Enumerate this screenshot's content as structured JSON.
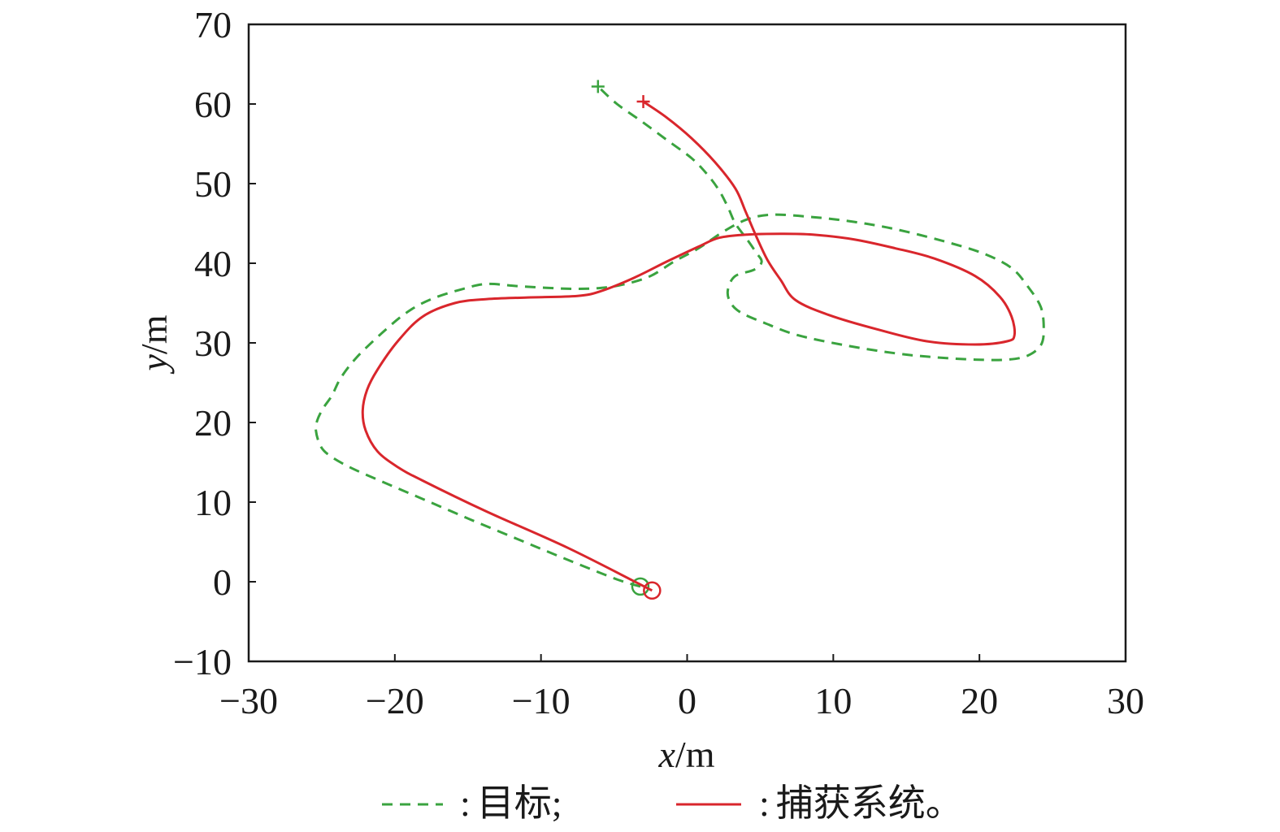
{
  "chart_data": {
    "type": "line",
    "xlabel": "x/m",
    "ylabel": "y/m",
    "xlim": [
      -30,
      30
    ],
    "ylim": [
      -10,
      70
    ],
    "xticks": [
      -30,
      -20,
      -10,
      0,
      10,
      20,
      30
    ],
    "xtick_labels": [
      "−30",
      "−20",
      "−10",
      "0",
      "10",
      "20",
      "30"
    ],
    "yticks": [
      -10,
      0,
      10,
      20,
      30,
      40,
      50,
      60,
      70
    ],
    "ytick_labels": [
      "−10",
      "0",
      "10",
      "20",
      "30",
      "40",
      "50",
      "60",
      "70"
    ],
    "grid": false,
    "legend_position": "bottom",
    "axis_color": "#1a1a1a",
    "series": [
      {
        "name": "目标",
        "legend_prefix": ":",
        "legend_suffix": ";",
        "color": "#3aa33f",
        "line_style": "dashed",
        "start_marker": "circle",
        "end_marker": "plus",
        "x": [
          -3.2,
          -4.8,
          -8.1,
          -11.4,
          -14.8,
          -18.1,
          -20.9,
          -23.1,
          -24.5,
          -25.1,
          -25.4,
          -25.3,
          -24.9,
          -24.3,
          -23.7,
          -22.6,
          -20.9,
          -19.2,
          -17.5,
          -15.3,
          -13.7,
          -11.4,
          -8.1,
          -5.9,
          -4.2,
          -2.5,
          -0.9,
          0.8,
          2.5,
          4.1,
          5.8,
          8.6,
          11.4,
          14.2,
          17.5,
          20.3,
          22.2,
          23.3,
          24.2,
          24.4,
          24.2,
          23.3,
          21.9,
          19.7,
          16.9,
          14.2,
          10.8,
          7.5,
          5.3,
          3.6,
          2.9,
          2.8,
          3.3,
          4.6,
          5.1,
          4.7,
          4.1,
          3.3,
          2.8,
          2.2,
          1.4,
          0.3,
          -1.4,
          -3.1,
          -4.8,
          -6.1
        ],
        "y": [
          -0.6,
          0.3,
          2.7,
          5.2,
          7.8,
          10.4,
          12.6,
          14.4,
          15.9,
          17.1,
          19.0,
          20.3,
          21.8,
          23.4,
          25.6,
          28.2,
          31.2,
          33.8,
          35.5,
          36.8,
          37.4,
          37.1,
          36.8,
          36.9,
          37.4,
          38.4,
          40.2,
          41.9,
          44.0,
          45.5,
          46.1,
          45.8,
          45.2,
          44.3,
          42.8,
          41.2,
          39.4,
          37.1,
          34.5,
          31.7,
          29.7,
          28.4,
          27.9,
          27.9,
          28.2,
          28.7,
          29.7,
          31.0,
          32.5,
          33.9,
          35.3,
          36.8,
          38.4,
          39.2,
          40.2,
          41.4,
          43.0,
          45.0,
          47.0,
          49.1,
          51.1,
          53.2,
          55.5,
          57.8,
          60.0,
          62.2
        ]
      },
      {
        "name": "捕获系统",
        "legend_prefix": ":",
        "legend_suffix": "。",
        "color": "#d9262c",
        "line_style": "solid",
        "start_marker": "circle",
        "end_marker": "plus",
        "x": [
          -2.4,
          -8.1,
          -13.7,
          -18.1,
          -19.8,
          -21.2,
          -22.0,
          -22.2,
          -21.9,
          -21.2,
          -19.8,
          -18.1,
          -15.9,
          -13.7,
          -10.9,
          -7.5,
          -5.9,
          -3.6,
          -1.4,
          0.8,
          2.2,
          4.1,
          6.4,
          8.6,
          11.4,
          14.2,
          16.9,
          19.7,
          21.4,
          22.2,
          22.4,
          21.9,
          19.7,
          16.4,
          13.0,
          9.7,
          7.4,
          6.4,
          5.5,
          4.7,
          4.0,
          3.3,
          1.9,
          0.3,
          -1.4,
          -3.0
        ],
        "y": [
          -1.1,
          4.2,
          8.8,
          12.7,
          14.4,
          16.4,
          19.0,
          21.5,
          24.1,
          26.6,
          30.2,
          33.3,
          35.0,
          35.5,
          35.7,
          35.9,
          36.5,
          38.2,
          40.2,
          42.1,
          43.2,
          43.6,
          43.7,
          43.6,
          43.0,
          41.9,
          40.6,
          38.4,
          35.8,
          33.3,
          31.0,
          30.2,
          29.8,
          30.2,
          31.7,
          33.5,
          35.4,
          37.9,
          40.4,
          43.5,
          46.5,
          49.4,
          52.7,
          55.7,
          58.3,
          60.3
        ]
      }
    ]
  }
}
